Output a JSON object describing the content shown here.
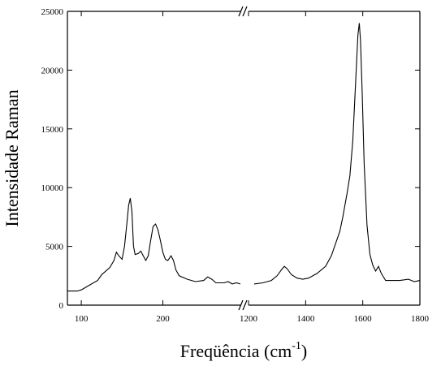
{
  "chart_data": [
    {
      "type": "line",
      "ylabel": "Intensidade Raman",
      "xlabel": [
        "Freqüência (cm",
        "-1",
        ")"
      ],
      "x": [
        83,
        95,
        100,
        110,
        120,
        125,
        135,
        140,
        143,
        146,
        150,
        153,
        156,
        158,
        160,
        162,
        164,
        166,
        170,
        173,
        176,
        179,
        182,
        185,
        188,
        191,
        194,
        197,
        200,
        203,
        206,
        210,
        213,
        216,
        220,
        230,
        240,
        250,
        255,
        260,
        265,
        275,
        280,
        285,
        290,
        295
      ],
      "values": [
        1200,
        1200,
        1300,
        1700,
        2100,
        2600,
        3200,
        3800,
        4500,
        4200,
        3900,
        5000,
        7000,
        8500,
        9100,
        8000,
        5000,
        4300,
        4400,
        4600,
        4200,
        3800,
        4200,
        5500,
        6700,
        6900,
        6400,
        5500,
        4500,
        3900,
        3800,
        4200,
        3800,
        3000,
        2500,
        2200,
        2000,
        2100,
        2400,
        2200,
        1900,
        1900,
        2000,
        1800,
        1900,
        1800
      ],
      "color": "#000000",
      "xlim": [
        83,
        296
      ],
      "xticks": [
        100,
        200
      ],
      "ylim": [
        0,
        25000
      ],
      "yticks": [
        0,
        5000,
        10000,
        15000,
        20000,
        25000
      ]
    },
    {
      "type": "line",
      "x": [
        1220,
        1250,
        1280,
        1300,
        1315,
        1325,
        1335,
        1350,
        1370,
        1390,
        1410,
        1440,
        1470,
        1490,
        1510,
        1520,
        1530,
        1545,
        1555,
        1565,
        1575,
        1583,
        1588,
        1592,
        1598,
        1605,
        1615,
        1625,
        1635,
        1645,
        1655,
        1665,
        1680,
        1700,
        1730,
        1760,
        1780,
        1800
      ],
      "values": [
        1800,
        1900,
        2100,
        2500,
        3000,
        3300,
        3100,
        2600,
        2300,
        2200,
        2300,
        2700,
        3300,
        4200,
        5600,
        6300,
        7500,
        9500,
        11000,
        14000,
        19000,
        23000,
        24000,
        22500,
        18000,
        12000,
        6800,
        4300,
        3400,
        2900,
        3300,
        2700,
        2100,
        2100,
        2100,
        2200,
        2000,
        2100
      ],
      "color": "#000000",
      "xlim": [
        1200,
        1800
      ],
      "xticks": [
        1200,
        1400,
        1600,
        1800
      ],
      "ylim": [
        0,
        25000
      ]
    }
  ]
}
